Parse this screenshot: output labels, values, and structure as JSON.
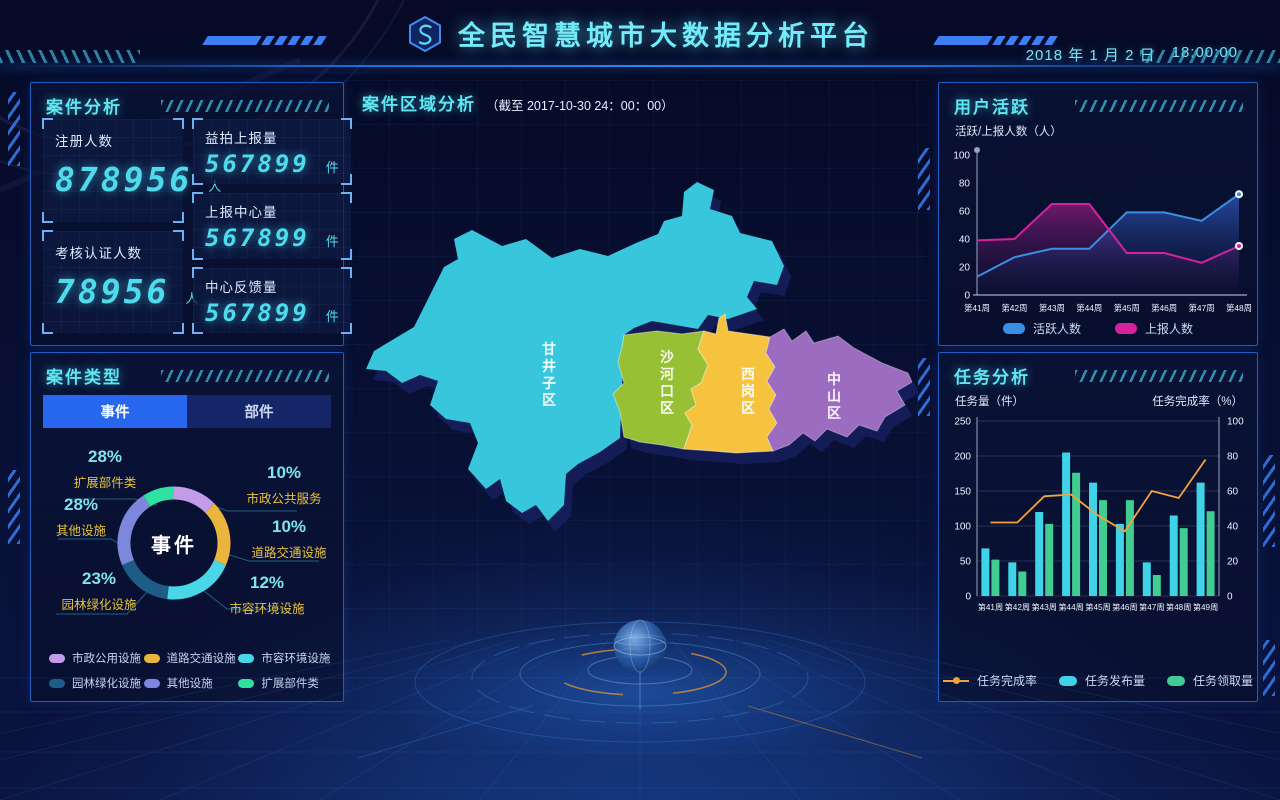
{
  "header": {
    "title": "全民智慧城市大数据分析平台",
    "date": "2018 年 1 月 2 日",
    "time": "18:00:00"
  },
  "case_analysis": {
    "title": "案件分析",
    "stats": [
      {
        "label": "注册人数",
        "value": "878956",
        "unit": "人"
      },
      {
        "label": "考核认证人数",
        "value": "78956",
        "unit": "人"
      },
      {
        "label": "益拍上报量",
        "value": "567899",
        "unit": "件"
      },
      {
        "label": "上报中心量",
        "value": "567899",
        "unit": "件"
      },
      {
        "label": "中心反馈量",
        "value": "567899",
        "unit": "件"
      }
    ]
  },
  "case_type": {
    "title": "案件类型",
    "active_tab": "事件",
    "tabs": [
      "事件",
      "部件"
    ],
    "donut": {
      "type": "pie",
      "center_label": "事件",
      "segments": [
        {
          "name": "市政公共服务",
          "pct": "10%",
          "color": "#c39be8",
          "sweep": 46
        },
        {
          "name": "道路交通设施",
          "pct": "10%",
          "color": "#eab53d",
          "sweep": 67
        },
        {
          "name": "市容环境设施",
          "pct": "12%",
          "color": "#49d6e8",
          "sweep": 74
        },
        {
          "name": "园林绿化设施",
          "pct": "23%",
          "color": "#1d5c85",
          "sweep": 60
        },
        {
          "name": "其他设施",
          "pct": "28%",
          "color": "#7d88dc",
          "sweep": 80
        },
        {
          "name": "扩展部件类",
          "pct": "28%",
          "color": "#2fe2a0",
          "sweep": 33
        }
      ]
    },
    "legend": [
      {
        "label": "市政公用设施",
        "color": "#c39be8"
      },
      {
        "label": "道路交通设施",
        "color": "#eab53d"
      },
      {
        "label": "市容环境设施",
        "color": "#49d6e8"
      },
      {
        "label": "园林绿化设施",
        "color": "#1d5c85"
      },
      {
        "label": "其他设施",
        "color": "#7d88dc"
      },
      {
        "label": "扩展部件类",
        "color": "#2fe2a0"
      }
    ]
  },
  "region": {
    "title": "案件区域分析",
    "subtitle": "（截至 2017-10-30 24：00：00）",
    "districts": [
      {
        "name": "甘井子区",
        "color": "#38c6dd"
      },
      {
        "name": "沙河口区",
        "color": "#97c035"
      },
      {
        "name": "西岗区",
        "color": "#f6c33e"
      },
      {
        "name": "中山区",
        "color": "#9c6cc0"
      }
    ]
  },
  "user_activity": {
    "title": "用户活跃",
    "axis_label": "活跃/上报人数（人）",
    "chart": {
      "type": "line",
      "categories": [
        "第41周",
        "第42周",
        "第43周",
        "第44周",
        "第45周",
        "第46周",
        "第47周",
        "第48周"
      ],
      "ylim": [
        0,
        100
      ],
      "yticks": [
        0,
        20,
        40,
        60,
        80,
        100
      ],
      "series": [
        {
          "name": "活跃人数",
          "color": "#3a8ee6",
          "values": [
            13,
            27,
            33,
            33,
            59,
            59,
            53,
            72
          ]
        },
        {
          "name": "上报人数",
          "color": "#d6219c",
          "values": [
            39,
            40,
            65,
            65,
            30,
            30,
            23,
            35
          ]
        }
      ]
    }
  },
  "task_analysis": {
    "title": "任务分析",
    "left_axis_label": "任务量（件）",
    "right_axis_label": "任务完成率（%）",
    "chart": {
      "type": "bar+line",
      "categories": [
        "第41周",
        "第42周",
        "第43周",
        "第44周",
        "第45周",
        "第46周",
        "第47周",
        "第48周",
        "第49周"
      ],
      "left_ylim": [
        0,
        250
      ],
      "left_yticks": [
        0,
        50,
        100,
        150,
        200,
        250
      ],
      "right_ylim": [
        0,
        100
      ],
      "right_yticks": [
        0,
        20,
        40,
        60,
        80,
        100
      ],
      "bars": [
        {
          "name": "任务发布量",
          "color": "#3fd3e8",
          "values": [
            68,
            48,
            120,
            205,
            162,
            103,
            48,
            115,
            162
          ]
        },
        {
          "name": "任务领取量",
          "color": "#41cc92",
          "values": [
            52,
            35,
            103,
            176,
            137,
            137,
            30,
            97,
            121
          ]
        }
      ],
      "line": {
        "name": "任务完成率",
        "color": "#f2a33c",
        "values": [
          42,
          42,
          57,
          58,
          46,
          37,
          60,
          56,
          78
        ]
      }
    }
  }
}
